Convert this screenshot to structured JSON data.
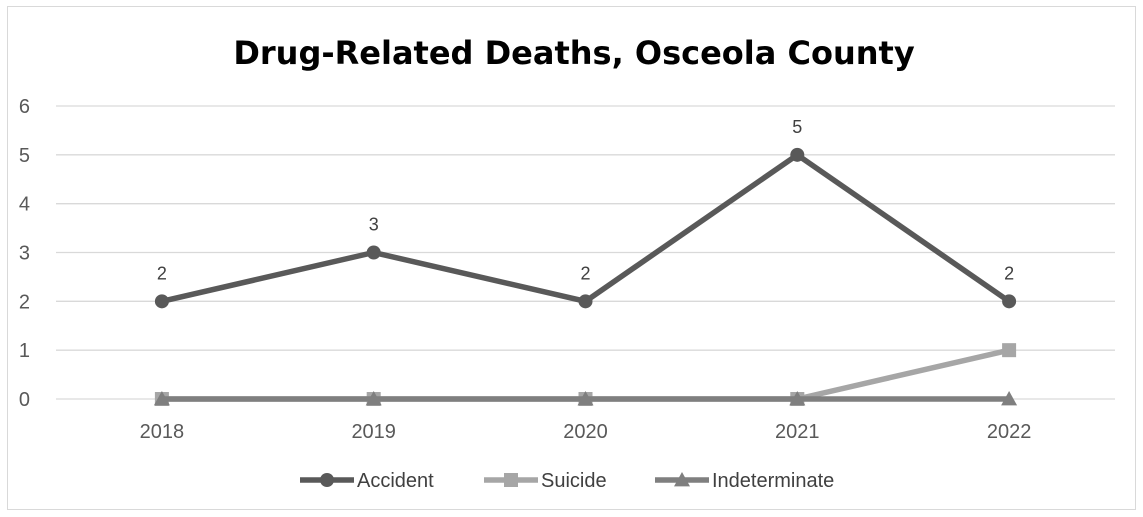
{
  "chart_data": {
    "type": "line",
    "title": "Drug-Related Deaths, Osceola County",
    "categories": [
      "2018",
      "2019",
      "2020",
      "2021",
      "2022"
    ],
    "ylim": [
      0,
      6
    ],
    "yticks": [
      0,
      1,
      2,
      3,
      4,
      5,
      6
    ],
    "grid": true,
    "legend_position": "bottom",
    "series": [
      {
        "name": "Accident",
        "values": [
          2,
          3,
          2,
          5,
          2
        ],
        "color": "#595959",
        "marker": "circle",
        "data_labels": true
      },
      {
        "name": "Suicide",
        "values": [
          0,
          0,
          0,
          0,
          1
        ],
        "color": "#a6a6a6",
        "marker": "square",
        "data_labels": false
      },
      {
        "name": "Indeterminate",
        "values": [
          0,
          0,
          0,
          0,
          0
        ],
        "color": "#7f7f7f",
        "marker": "triangle",
        "data_labels": false
      }
    ]
  }
}
